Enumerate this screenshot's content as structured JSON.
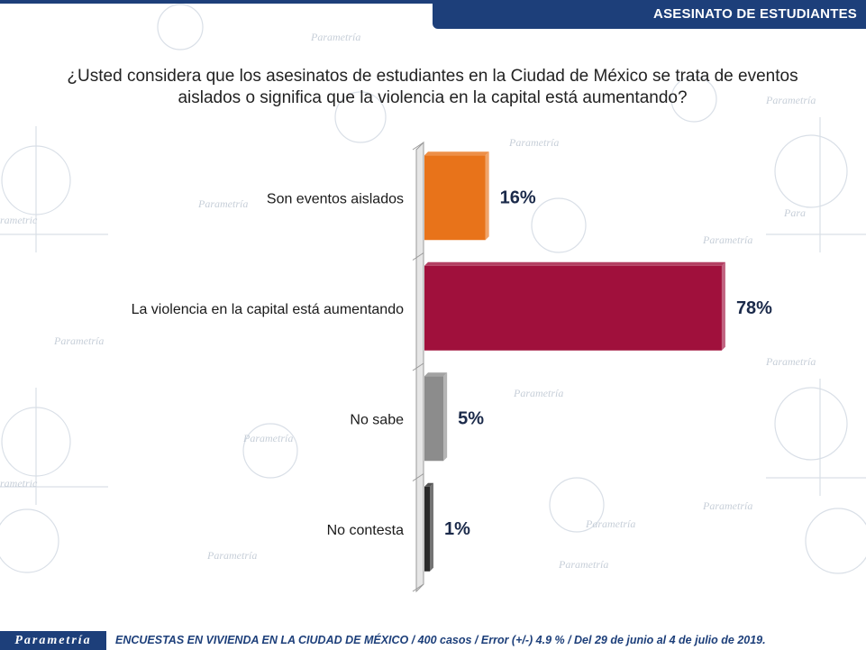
{
  "header": {
    "title": "ASESINATO DE ESTUDIANTES"
  },
  "question": {
    "line1": "¿Usted considera que los asesinatos de estudiantes en la Ciudad de México se trata de eventos",
    "line2": "aislados o significa que la violencia en la capital está aumentando?"
  },
  "chart_data": {
    "type": "bar",
    "orientation": "horizontal",
    "categories": [
      "Son eventos aislados",
      "La violencia en la capital está aumentando",
      "No sabe",
      "No contesta"
    ],
    "values": [
      16,
      78,
      5,
      1
    ],
    "value_labels": [
      "16%",
      "78%",
      "5%",
      "1%"
    ],
    "colors": [
      "#e8731a",
      "#a0103c",
      "#8c8c8c",
      "#2a2a2a"
    ],
    "xlim": [
      0,
      100
    ],
    "grid": false,
    "legend": "none"
  },
  "footer": {
    "logo": "Parametría",
    "note": "ENCUESTAS EN VIVIENDA EN LA CIUDAD DE MÉXICO / 400 casos / Error (+/-) 4.9 % / Del 29 de junio  al 4 de julio de 2019."
  },
  "watermark": {
    "brand": "Parametría"
  }
}
